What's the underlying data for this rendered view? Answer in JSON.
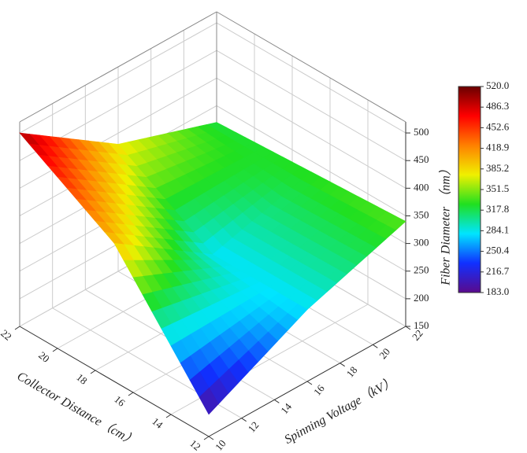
{
  "chart_data": {
    "type": "surface",
    "x_label": "Collector Distance（cm）",
    "y_label": "Spinning Voltage（kV）",
    "z_label": "Fiber Diameter （nm）",
    "x": [
      12,
      17,
      22
    ],
    "y": [
      10,
      16,
      22
    ],
    "z": [
      [
        190,
        280,
        340
      ],
      [
        400,
        280,
        330
      ],
      [
        500,
        380,
        320
      ]
    ],
    "xlim": [
      12,
      22
    ],
    "xticks": [
      12,
      14,
      16,
      18,
      20,
      22
    ],
    "ylim": [
      10,
      22
    ],
    "yticks": [
      10,
      12,
      14,
      16,
      18,
      20,
      22
    ],
    "zlim": [
      150,
      520
    ],
    "zticks": [
      150,
      200,
      250,
      300,
      350,
      400,
      450,
      500
    ],
    "grid": true,
    "colormap": [
      "#5a0a8c",
      "#1030ff",
      "#00e5ff",
      "#20e020",
      "#f0f000",
      "#ff8000",
      "#ff0000",
      "#6a0000"
    ],
    "colorbar": {
      "lim": [
        183,
        520
      ],
      "ticks": [
        {
          "value": 520,
          "label": "520.0"
        },
        486.3,
        452.6,
        418.9,
        385.2,
        351.5,
        317.8,
        284.1,
        250.4,
        216.7,
        {
          "value": 183,
          "label": "183.0"
        }
      ]
    }
  }
}
